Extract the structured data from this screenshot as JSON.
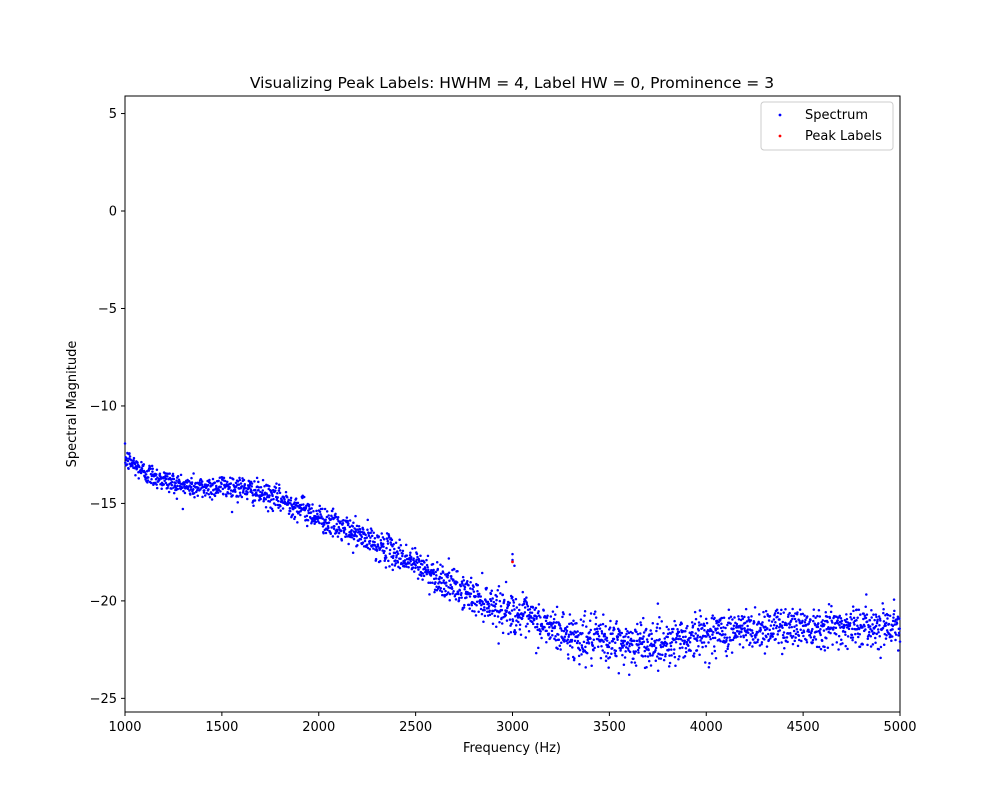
{
  "chart_data": {
    "type": "scatter",
    "title": "Visualizing Peak Labels: HWHM = 4, Label HW = 0, Prominence = 3",
    "xlabel": "Frequency (Hz)",
    "ylabel": "Spectral Magnitude",
    "xlim": [
      1000,
      5000
    ],
    "ylim": [
      -25.7,
      5.9
    ],
    "xticks": [
      1000,
      1500,
      2000,
      2500,
      3000,
      3500,
      4000,
      4500,
      5000
    ],
    "xtick_labels": [
      "1000",
      "1500",
      "2000",
      "2500",
      "3000",
      "3500",
      "4000",
      "4500",
      "5000"
    ],
    "yticks": [
      5,
      0,
      -5,
      -10,
      -15,
      -20,
      -25
    ],
    "ytick_labels": [
      "5",
      "0",
      "−5",
      "−10",
      "−15",
      "−20",
      "−25"
    ],
    "grid": false,
    "legend_position": "upper right",
    "series": [
      {
        "name": "Spectrum",
        "color": "#0000ff",
        "marker": "point",
        "trend": {
          "x": [
            1000,
            1100,
            1200,
            1300,
            1400,
            1500,
            1600,
            1700,
            1800,
            1900,
            2000,
            2100,
            2200,
            2300,
            2400,
            2500,
            2600,
            2700,
            2800,
            2900,
            3000,
            3100,
            3200,
            3300,
            3400,
            3500,
            3600,
            3700,
            3800,
            3900,
            4000,
            4100,
            4200,
            4300,
            4400,
            4500,
            4600,
            4700,
            4800,
            4900,
            5000
          ],
          "y": [
            -12.7,
            -13.4,
            -13.8,
            -14.1,
            -14.2,
            -14.1,
            -14.2,
            -14.5,
            -14.8,
            -15.2,
            -15.7,
            -16.2,
            -16.6,
            -17.1,
            -17.6,
            -18.1,
            -18.7,
            -19.3,
            -19.8,
            -20.2,
            -20.6,
            -21.0,
            -21.4,
            -21.8,
            -22.0,
            -22.1,
            -22.2,
            -22.2,
            -22.1,
            -21.9,
            -21.7,
            -21.6,
            -21.5,
            -21.4,
            -21.3,
            -21.3,
            -21.3,
            -21.3,
            -21.3,
            -21.3,
            -21.2
          ],
          "noise": {
            "x": [
              1000,
              2000,
              2500,
              3000,
              3500,
              4000,
              5000
            ],
            "sd": [
              0.28,
              0.33,
              0.4,
              0.5,
              0.62,
              0.55,
              0.5
            ]
          }
        },
        "outliers": [
          {
            "x": 3000,
            "y": -17.6
          },
          {
            "x": 3000,
            "y": -17.9
          },
          {
            "x": 3010,
            "y": -18.2
          }
        ]
      },
      {
        "name": "Peak Labels",
        "color": "#ff0000",
        "marker": "point",
        "points": [
          {
            "x": 3000,
            "y": -18.0
          }
        ]
      }
    ]
  }
}
